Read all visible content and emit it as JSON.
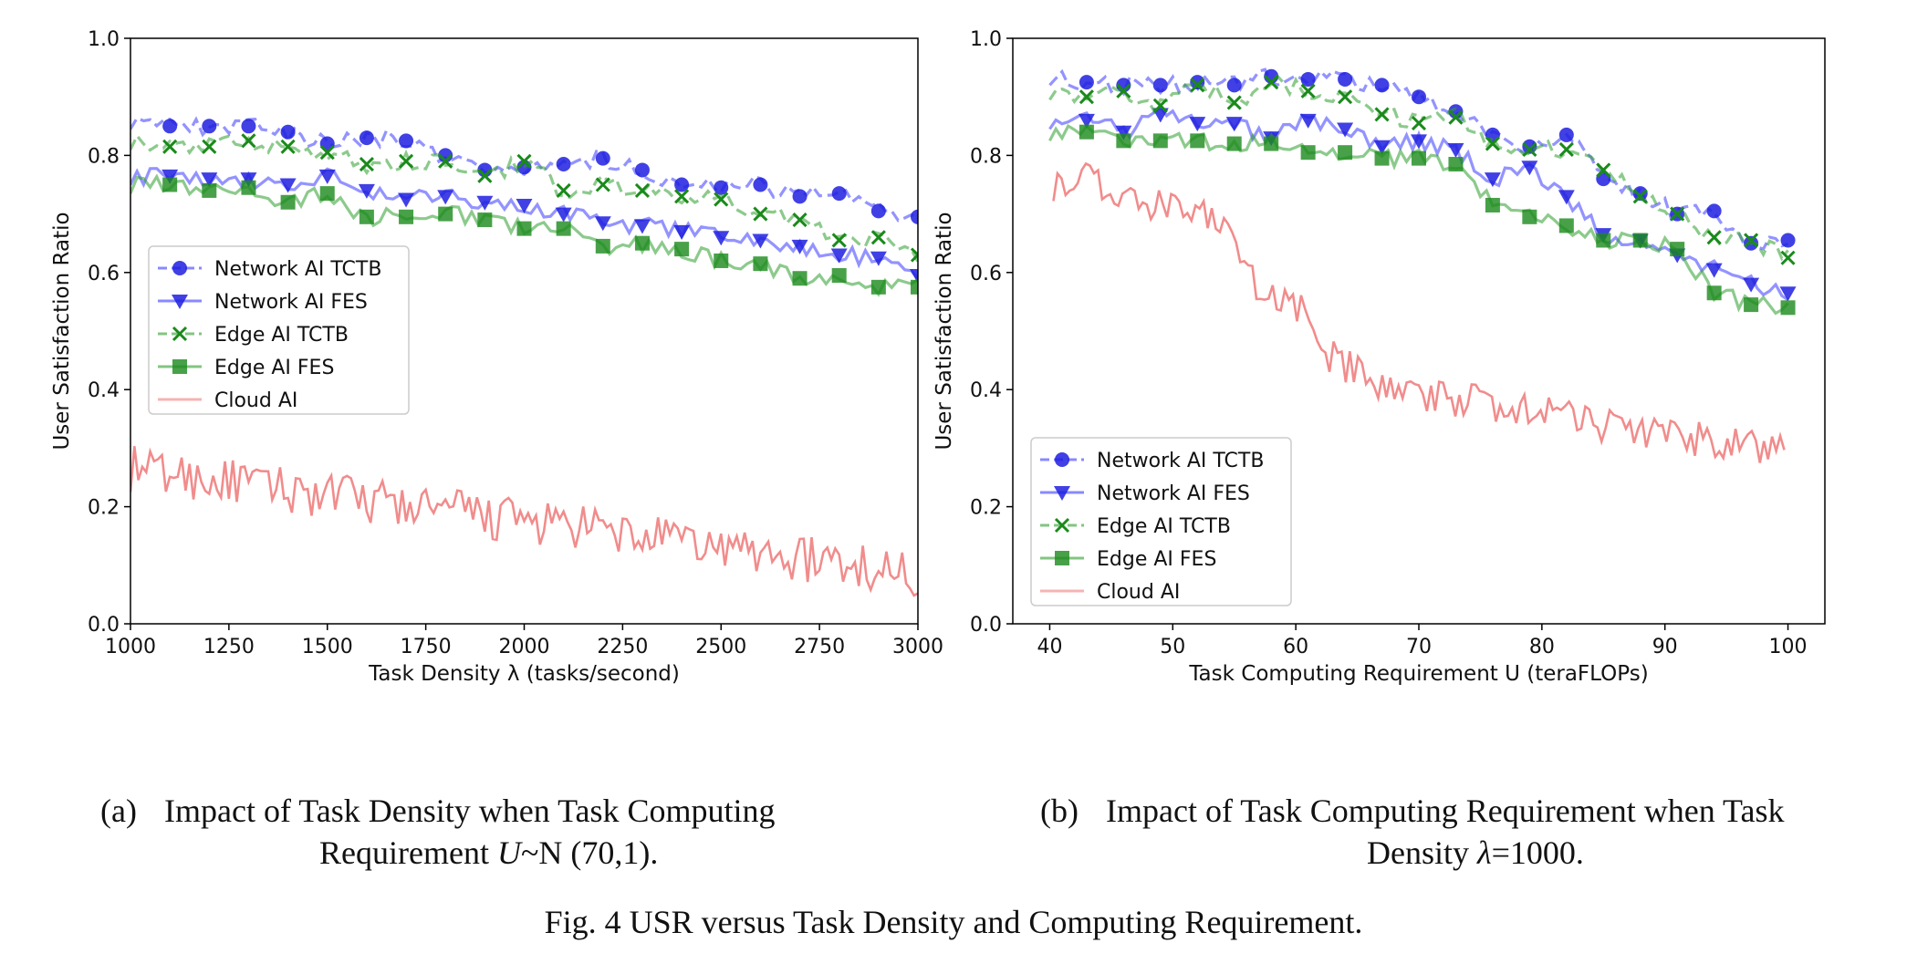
{
  "figure": {
    "caption": "Fig. 4 USR versus Task Density and Computing Requirement.",
    "subcaption_a": {
      "label": "(a)",
      "line1": "Impact of Task Density when Task Computing",
      "line2_prefix": "Requirement ",
      "line2_var": "U",
      "line2_suffix": "~N (70,1)."
    },
    "subcaption_b": {
      "label": "(b)",
      "line1": "Impact of Task Computing Requirement when Task",
      "line2_prefix": "Density ",
      "line2_var": "λ",
      "line2_suffix": "=1000."
    }
  },
  "colors": {
    "network_tctb": "#3b3bff",
    "network_fes": "#3b3bff",
    "edge_tctb": "#2e9e2e",
    "edge_fes": "#2e9e2e",
    "cloud": "#f08080",
    "marker_blue": "#1f1fe0",
    "marker_green": "#1a8a1a"
  },
  "chart_data": [
    {
      "type": "line",
      "xlabel": "Task Density λ (tasks/second)",
      "ylabel": "User Satisfaction Ratio",
      "xlim": [
        1000,
        3000
      ],
      "ylim": [
        0.0,
        1.0
      ],
      "xticks": [
        "1000",
        "1250",
        "1500",
        "1750",
        "2000",
        "2250",
        "2500",
        "2750",
        "3000"
      ],
      "yticks": [
        "0.0",
        "0.2",
        "0.4",
        "0.6",
        "0.8",
        "1.0"
      ],
      "legend_position": "center-left",
      "markers_x": [
        1100,
        1200,
        1300,
        1400,
        1500,
        1600,
        1700,
        1800,
        1900,
        2000,
        2100,
        2200,
        2300,
        2400,
        2500,
        2600,
        2700,
        2800,
        2900,
        3000
      ],
      "series": [
        {
          "name": "Network AI TCTB",
          "style": "dashed",
          "marker": "circle",
          "color_key": "network_tctb",
          "values": [
            0.85,
            0.85,
            0.85,
            0.84,
            0.82,
            0.83,
            0.825,
            0.8,
            0.775,
            0.78,
            0.785,
            0.795,
            0.775,
            0.75,
            0.745,
            0.75,
            0.73,
            0.735,
            0.705,
            0.695
          ]
        },
        {
          "name": "Network AI FES",
          "style": "solid",
          "marker": "triangle-down",
          "color_key": "network_fes",
          "values": [
            0.765,
            0.76,
            0.76,
            0.75,
            0.765,
            0.74,
            0.725,
            0.73,
            0.72,
            0.715,
            0.7,
            0.685,
            0.68,
            0.67,
            0.66,
            0.655,
            0.645,
            0.63,
            0.625,
            0.595
          ]
        },
        {
          "name": "Edge AI TCTB",
          "style": "dashed",
          "marker": "x",
          "color_key": "edge_tctb",
          "values": [
            0.815,
            0.815,
            0.825,
            0.815,
            0.805,
            0.785,
            0.79,
            0.79,
            0.765,
            0.79,
            0.74,
            0.75,
            0.74,
            0.73,
            0.725,
            0.7,
            0.69,
            0.655,
            0.66,
            0.63
          ]
        },
        {
          "name": "Edge AI FES",
          "style": "solid",
          "marker": "square",
          "color_key": "edge_fes",
          "values": [
            0.75,
            0.74,
            0.745,
            0.72,
            0.735,
            0.695,
            0.695,
            0.7,
            0.69,
            0.675,
            0.675,
            0.645,
            0.65,
            0.64,
            0.62,
            0.615,
            0.59,
            0.595,
            0.575,
            0.575
          ]
        },
        {
          "name": "Cloud AI",
          "style": "solid",
          "marker": "none",
          "color_key": "cloud",
          "noisy": true,
          "start": 0.265,
          "end": 0.085,
          "noise": 0.04
        }
      ]
    },
    {
      "type": "line",
      "xlabel": "Task Computing Requirement U (teraFLOPs)",
      "ylabel": "User Satisfaction Ratio",
      "xlim": [
        37,
        103
      ],
      "ylim": [
        0.0,
        1.0
      ],
      "xticks": [
        "40",
        "50",
        "60",
        "70",
        "80",
        "90",
        "100"
      ],
      "yticks": [
        "0.0",
        "0.2",
        "0.4",
        "0.6",
        "0.8",
        "1.0"
      ],
      "legend_position": "lower-left",
      "markers_x": [
        43,
        46,
        49,
        52,
        55,
        58,
        61,
        64,
        67,
        70,
        73,
        76,
        79,
        82,
        85,
        88,
        91,
        94,
        97,
        100
      ],
      "series": [
        {
          "name": "Network AI TCTB",
          "style": "dashed",
          "marker": "circle",
          "color_key": "network_tctb",
          "values": [
            0.925,
            0.92,
            0.92,
            0.925,
            0.92,
            0.935,
            0.93,
            0.93,
            0.92,
            0.9,
            0.875,
            0.835,
            0.815,
            0.835,
            0.76,
            0.735,
            0.7,
            0.705,
            0.65,
            0.655
          ]
        },
        {
          "name": "Network AI FES",
          "style": "solid",
          "marker": "triangle-down",
          "color_key": "network_fes",
          "values": [
            0.86,
            0.84,
            0.87,
            0.855,
            0.855,
            0.83,
            0.86,
            0.845,
            0.815,
            0.825,
            0.81,
            0.76,
            0.78,
            0.73,
            0.665,
            0.655,
            0.63,
            0.605,
            0.58,
            0.565
          ]
        },
        {
          "name": "Edge AI TCTB",
          "style": "dashed",
          "marker": "x",
          "color_key": "edge_tctb",
          "values": [
            0.9,
            0.91,
            0.885,
            0.92,
            0.89,
            0.925,
            0.91,
            0.9,
            0.87,
            0.855,
            0.865,
            0.82,
            0.81,
            0.81,
            0.775,
            0.73,
            0.7,
            0.66,
            0.655,
            0.625
          ]
        },
        {
          "name": "Edge AI FES",
          "style": "solid",
          "marker": "square",
          "color_key": "edge_fes",
          "values": [
            0.84,
            0.825,
            0.825,
            0.825,
            0.82,
            0.82,
            0.805,
            0.805,
            0.795,
            0.795,
            0.785,
            0.715,
            0.695,
            0.68,
            0.655,
            0.655,
            0.64,
            0.565,
            0.545,
            0.54
          ]
        },
        {
          "name": "Cloud AI",
          "style": "solid",
          "marker": "none",
          "color_key": "cloud",
          "noisy": true,
          "anchors": [
            [
              40,
              0.75
            ],
            [
              43,
              0.77
            ],
            [
              45,
              0.74
            ],
            [
              50,
              0.71
            ],
            [
              53,
              0.7
            ],
            [
              55,
              0.65
            ],
            [
              57,
              0.57
            ],
            [
              60,
              0.55
            ],
            [
              62,
              0.47
            ],
            [
              64,
              0.44
            ],
            [
              67,
              0.41
            ],
            [
              70,
              0.39
            ],
            [
              75,
              0.38
            ],
            [
              80,
              0.36
            ],
            [
              85,
              0.34
            ],
            [
              90,
              0.32
            ],
            [
              95,
              0.31
            ],
            [
              100,
              0.29
            ]
          ],
          "noise": 0.03
        }
      ]
    }
  ]
}
